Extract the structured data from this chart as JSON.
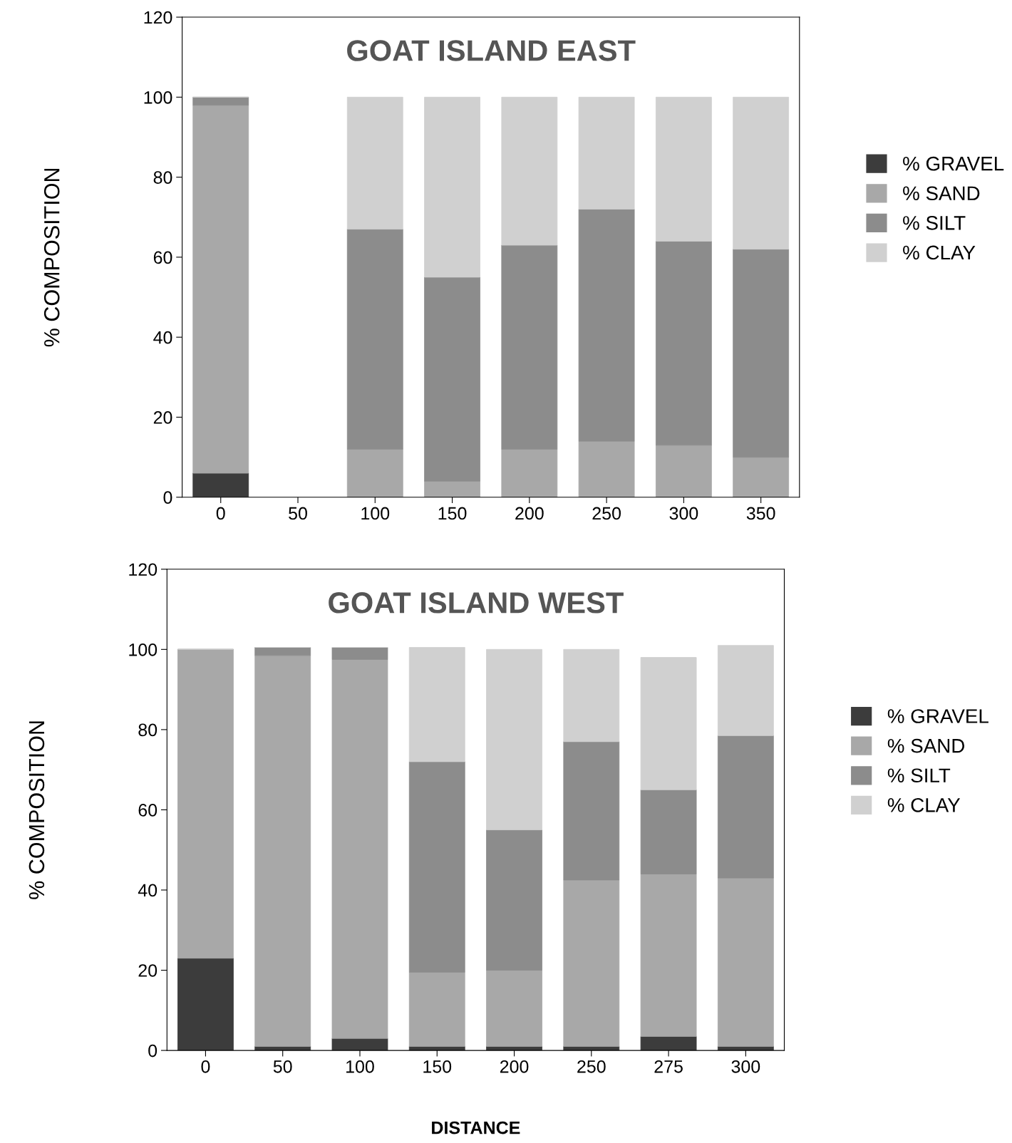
{
  "chart_data": [
    {
      "type": "bar",
      "stacked": true,
      "title": "GOAT ISLAND EAST",
      "ylabel": "% COMPOSITION",
      "categories": [
        "0",
        "50",
        "100",
        "150",
        "200",
        "250",
        "300",
        "350"
      ],
      "series": [
        {
          "name": "% GRAVEL",
          "color": "#3c3c3c",
          "values": [
            6,
            null,
            0,
            0,
            0,
            0,
            0,
            0
          ]
        },
        {
          "name": "% SAND",
          "color": "#a8a8a8",
          "values": [
            92,
            null,
            12,
            4,
            12,
            14,
            13,
            10
          ]
        },
        {
          "name": "% SILT",
          "color": "#8c8c8c",
          "values": [
            2,
            null,
            55,
            51,
            51,
            58,
            51,
            52
          ]
        },
        {
          "name": "% CLAY",
          "color": "#d0d0d0",
          "values": [
            0,
            null,
            33,
            45,
            37,
            28,
            36,
            38
          ]
        }
      ],
      "ylim": [
        0,
        120
      ],
      "yticks": [
        0,
        20,
        40,
        60,
        80,
        100,
        120
      ],
      "legend": "right",
      "grid": false
    },
    {
      "type": "bar",
      "stacked": true,
      "title": "GOAT ISLAND WEST",
      "ylabel": "% COMPOSITION",
      "xlabel": "DISTANCE",
      "categories": [
        "0",
        "50",
        "100",
        "150",
        "200",
        "250",
        "275",
        "300"
      ],
      "series": [
        {
          "name": "% GRAVEL",
          "color": "#3c3c3c",
          "values": [
            23,
            1,
            3,
            1,
            1,
            1,
            3.5,
            1
          ]
        },
        {
          "name": "% SAND",
          "color": "#a8a8a8",
          "values": [
            77,
            97.5,
            94.5,
            18.5,
            19,
            41.5,
            40.5,
            42
          ]
        },
        {
          "name": "% SILT",
          "color": "#8c8c8c",
          "values": [
            0,
            2,
            3,
            52.5,
            35,
            34.5,
            21,
            35.5
          ]
        },
        {
          "name": "% CLAY",
          "color": "#d0d0d0",
          "values": [
            0,
            0,
            0,
            28.5,
            45,
            23,
            33,
            22.5
          ]
        }
      ],
      "ylim": [
        0,
        120
      ],
      "yticks": [
        0,
        20,
        40,
        60,
        80,
        100,
        120
      ],
      "legend": "right",
      "grid": false
    }
  ]
}
